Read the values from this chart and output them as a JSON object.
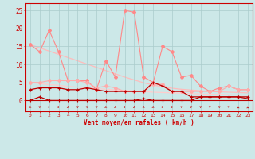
{
  "x": [
    0,
    1,
    2,
    3,
    4,
    5,
    6,
    7,
    8,
    9,
    10,
    11,
    12,
    13,
    14,
    15,
    16,
    17,
    18,
    19,
    20,
    21,
    22,
    23
  ],
  "line1_y": [
    15.5,
    13.5,
    19.5,
    13.5,
    5.5,
    5.5,
    5.5,
    3.0,
    11.0,
    6.5,
    25.0,
    24.5,
    6.5,
    5.0,
    15.0,
    13.5,
    6.5,
    7.0,
    4.0,
    2.5,
    3.5,
    4.0,
    3.0,
    3.0
  ],
  "line2_y": [
    5.0,
    5.0,
    5.5,
    5.5,
    5.5,
    5.5,
    5.0,
    3.5,
    4.0,
    3.5,
    2.5,
    2.5,
    2.5,
    4.5,
    4.5,
    2.5,
    2.5,
    2.5,
    2.5,
    2.5,
    2.5,
    4.0,
    3.0,
    3.0
  ],
  "line3_y": [
    3.0,
    3.5,
    3.5,
    3.5,
    3.0,
    3.0,
    3.5,
    3.0,
    2.5,
    2.5,
    2.5,
    2.5,
    2.5,
    5.0,
    4.0,
    2.5,
    2.5,
    1.0,
    1.0,
    1.0,
    1.0,
    1.0,
    1.0,
    1.0
  ],
  "line4_y": [
    0.0,
    1.0,
    0.0,
    0.0,
    0.0,
    0.0,
    0.0,
    0.0,
    0.0,
    0.0,
    0.0,
    0.0,
    0.5,
    0.0,
    0.0,
    0.0,
    0.0,
    0.0,
    1.0,
    1.0,
    1.0,
    1.0,
    1.0,
    0.5
  ],
  "trend1_y": [
    15.5,
    14.6,
    13.7,
    12.8,
    11.9,
    11.0,
    10.1,
    9.2,
    8.3,
    7.4,
    6.5,
    5.7,
    4.9,
    4.3,
    3.8,
    3.4,
    3.1,
    2.9,
    2.7,
    2.5,
    2.4,
    2.3,
    2.2,
    2.1
  ],
  "trend2_y": [
    5.0,
    4.7,
    4.4,
    4.2,
    3.9,
    3.7,
    3.5,
    3.3,
    3.1,
    2.9,
    2.8,
    2.6,
    2.5,
    2.3,
    2.2,
    2.1,
    2.0,
    1.9,
    1.8,
    1.7,
    1.7,
    1.6,
    1.5,
    1.5
  ],
  "bg_color": "#cce8e8",
  "grid_color": "#aacccc",
  "line1_color": "#ff8888",
  "line2_color": "#ffaaaa",
  "line3_color": "#bb0000",
  "line4_color": "#bb0000",
  "trend1_color": "#ffbbbb",
  "trend2_color": "#ffcccc",
  "xlabel": "Vent moyen/en rafales ( km/h )",
  "xlabel_color": "#cc0000",
  "tick_color": "#cc0000",
  "arrow_color": "#cc0000",
  "yticks": [
    0,
    5,
    10,
    15,
    20,
    25
  ],
  "xlim": [
    -0.5,
    23.5
  ],
  "ylim": [
    -3.0,
    27
  ],
  "arrow_angles_deg": [
    225,
    45,
    270,
    270,
    225,
    45,
    45,
    45,
    225,
    225,
    270,
    225,
    225,
    225,
    270,
    270,
    45,
    45,
    45,
    315,
    315,
    315,
    0,
    0
  ]
}
